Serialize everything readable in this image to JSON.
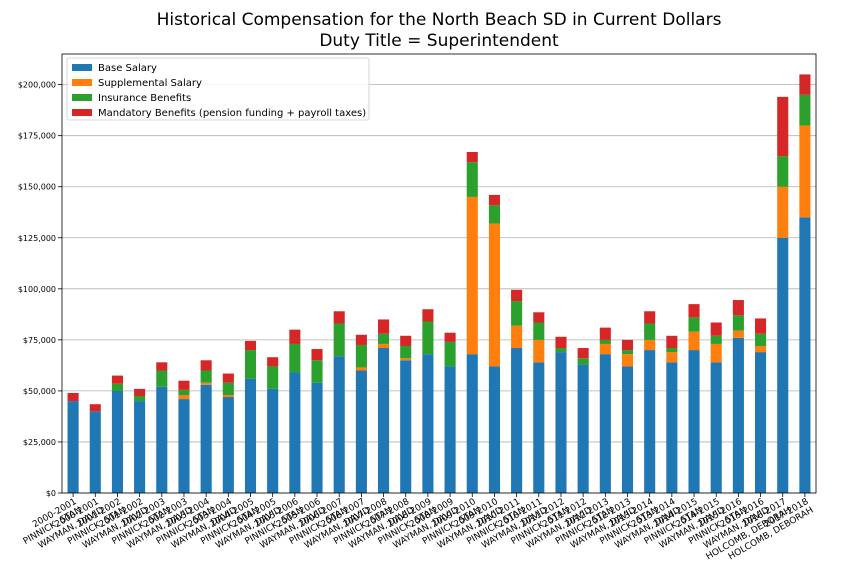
{
  "chart_data": {
    "type": "bar",
    "stacked": true,
    "title": "Historical Compensation for the North Beach SD in Current Dollars",
    "subtitle": "Duty Title = Superintendent",
    "xlabel": "",
    "ylabel": "",
    "ylim": [
      0,
      215000
    ],
    "yticks": [
      0,
      25000,
      50000,
      75000,
      100000,
      125000,
      150000,
      175000,
      200000
    ],
    "ytick_labels": [
      "$0",
      "$25,000",
      "$50,000",
      "$75,000",
      "$100,000",
      "$125,000",
      "$150,000",
      "$175,000",
      "$200,000"
    ],
    "grid": "horizontal",
    "legend_position": "top-left",
    "categories": [
      "2000-2001\nPINNICK, STAN",
      "2000-2001\nWAYMAN, DAVID",
      "2001-2002\nPINNICK, STAN",
      "2001-2002\nWAYMAN, DAVID",
      "2002-2003\nPINNICK, STAN",
      "2002-2003\nWAYMAN, DAVID",
      "2003-2004\nPINNICK, STAN",
      "2003-2004\nWAYMAN, DAVID",
      "2004-2005\nPINNICK, STAN",
      "2004-2005\nWAYMAN, DAVID",
      "2005-2006\nPINNICK, STAN",
      "2005-2006\nWAYMAN, DAVID",
      "2006-2007\nPINNICK, STAN",
      "2006-2007\nWAYMAN, DAVID",
      "2007-2008\nPINNICK, STAN",
      "2007-2008\nWAYMAN, DAVID",
      "2008-2009\nPINNICK, STAN",
      "2008-2009\nWAYMAN, DAVID",
      "2009-2010\nPINNICK, STAN",
      "2009-2010\nWAYMAN, DAVID",
      "2010-2011\nPINNICK, STAN",
      "2010-2011\nWAYMAN, DAVID",
      "2011-2012\nPINNICK, STAN",
      "2011-2012\nWAYMAN, DAVID",
      "2012-2013\nPINNICK, STAN",
      "2012-2013\nWAYMAN, DAVID",
      "2013-2014\nPINNICK, STAN",
      "2013-2014\nWAYMAN, DAVID",
      "2014-2015\nPINNICK, STAN",
      "2014-2015\nWAYMAN, DAVID",
      "2015-2016\nPINNICK, STAN",
      "2015-2016\nWAYMAN, DAVID",
      "2016-2017\nHOLCOMB, DEBORAH",
      "2017-2018\nHOLCOMB, DEBORAH"
    ],
    "series": [
      {
        "name": "Base Salary",
        "color": "#1f77b4",
        "values": [
          45000,
          40000,
          50000,
          45000,
          52000,
          46000,
          53000,
          47000,
          56000,
          51000,
          59000,
          54000,
          67000,
          60000,
          71000,
          65000,
          68000,
          62000,
          68000,
          62000,
          71000,
          64000,
          69000,
          63000,
          68000,
          62000,
          70000,
          64000,
          70000,
          64000,
          76000,
          69000,
          125000,
          135000
        ]
      },
      {
        "name": "Supplemental Salary",
        "color": "#ff7f0e",
        "values": [
          0,
          0,
          0,
          0,
          0,
          2000,
          1000,
          1000,
          0,
          0,
          0,
          0,
          0,
          1500,
          2000,
          1000,
          0,
          0,
          77000,
          70000,
          11000,
          11000,
          0,
          0,
          5000,
          6000,
          5000,
          5000,
          9000,
          9000,
          3500,
          3000,
          25000,
          45000
        ]
      },
      {
        "name": "Insurance Benefits",
        "color": "#2ca02c",
        "values": [
          0,
          0,
          3500,
          2500,
          8000,
          2500,
          6000,
          6000,
          14000,
          11000,
          14000,
          11000,
          16000,
          11000,
          5000,
          6000,
          16000,
          12000,
          17000,
          9000,
          12000,
          8500,
          2000,
          3000,
          2000,
          2000,
          8000,
          2000,
          7000,
          4000,
          7500,
          6000,
          15000,
          15000
        ]
      },
      {
        "name": "Mandatory Benefits (pension funding + payroll taxes)",
        "color": "#d62728",
        "values": [
          4000,
          3500,
          4000,
          3500,
          4000,
          4500,
          5000,
          4500,
          4500,
          4500,
          7000,
          5500,
          6000,
          5000,
          7000,
          5000,
          6000,
          4500,
          5000,
          5000,
          5500,
          5000,
          5500,
          5000,
          6000,
          5000,
          6000,
          6000,
          6500,
          6500,
          7500,
          7500,
          29000,
          10000
        ]
      }
    ]
  }
}
